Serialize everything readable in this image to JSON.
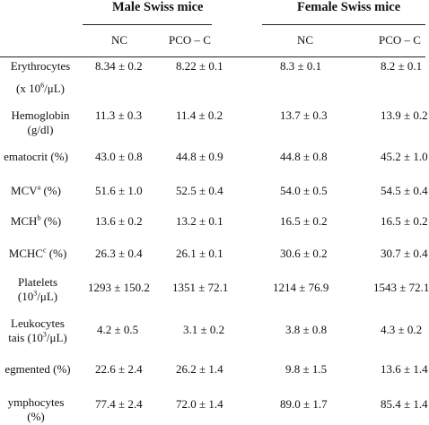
{
  "header": {
    "group_male": "Male Swiss mice",
    "group_female": "Female Swiss mice",
    "columns": [
      "NC",
      "PCO – C",
      "NC",
      "PCO – C"
    ]
  },
  "rows": [
    {
      "label_1": "Erythrocytes",
      "label_2": "(x 10⁶/μL)",
      "values": [
        "8.34 ± 0.2",
        "8.22 ± 0.1",
        "8.3 ± 0.1",
        "8.2 ± 0.1"
      ]
    },
    {
      "label_1": "Hemoglobin",
      "label_2": "(g/dl)",
      "values": [
        "11.3 ± 0.3",
        "11.4 ± 0.2",
        "13.7 ± 0.3",
        "13.9 ± 0.2"
      ]
    },
    {
      "label_1": "ematocrit (%)",
      "label_2": "",
      "values": [
        "43.0 ± 0.8",
        "44.8 ± 0.9",
        "44.8 ± 0.8",
        "45.2 ± 1.0"
      ]
    },
    {
      "label_1": "MCVᵃ (%)",
      "label_2": "",
      "values": [
        "51.6 ± 1.0",
        "52.5 ± 0.4",
        "54.0 ± 0.5",
        "54.5 ± 0.4"
      ]
    },
    {
      "label_1": "MCHᵇ (%)",
      "label_2": "",
      "values": [
        "13.6 ± 0.2",
        "13.2 ± 0.1",
        "16.5 ± 0.2",
        "16.5 ± 0.2"
      ]
    },
    {
      "label_1": "MCHCᶜ (%)",
      "label_2": "",
      "values": [
        "26.3 ± 0.4",
        "26.1 ± 0.1",
        "30.6 ± 0.2",
        "30.7 ± 0.4"
      ]
    },
    {
      "label_1": "Platelets",
      "label_2": "(10³/μL)",
      "values": [
        "1293 ± 150.2",
        "1351 ± 72.1",
        "1214 ± 76.9",
        "1543 ± 72.1"
      ]
    },
    {
      "label_1": "Leukocytes",
      "label_2": "tais (10³/μL)",
      "values": [
        "4.2 ± 0.5",
        "3.1 ± 0.2",
        "3.8 ± 0.8",
        "4.3 ± 0.2"
      ]
    },
    {
      "label_1": "egmented (%)",
      "label_2": "",
      "values": [
        "22.6 ± 2.4",
        "26.2 ± 1.4",
        "9.8 ± 1.5",
        "13.6 ± 1.4"
      ]
    },
    {
      "label_1": "ymphocytes",
      "label_2": "(%)",
      "values": [
        "77.4 ± 2.4",
        "72.0 ± 1.4",
        "89.0 ± 1.7",
        "85.4 ± 1.4"
      ]
    }
  ]
}
